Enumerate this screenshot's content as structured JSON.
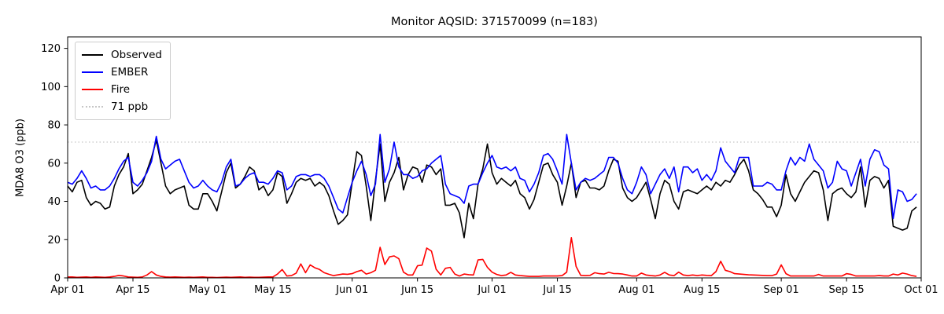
{
  "header": {
    "title": "Monitor AQSID: 371570099 (n=183)"
  },
  "chart_data": {
    "type": "line",
    "title": "Monitor AQSID: 371570099 (n=183)",
    "xlabel": "",
    "ylabel": "MDA8 O3 (ppb)",
    "ylim": [
      0,
      126
    ],
    "n_days": 183,
    "x_range": [
      "Apr 01",
      "Oct 01"
    ],
    "grid": false,
    "legend_position": "upper-left",
    "x_ticks": [
      {
        "label": "Apr 01",
        "day": 0
      },
      {
        "label": "Apr 15",
        "day": 14
      },
      {
        "label": "May 01",
        "day": 30
      },
      {
        "label": "May 15",
        "day": 44
      },
      {
        "label": "Jun 01",
        "day": 61
      },
      {
        "label": "Jun 15",
        "day": 75
      },
      {
        "label": "Jul 01",
        "day": 91
      },
      {
        "label": "Jul 15",
        "day": 105
      },
      {
        "label": "Aug 01",
        "day": 122
      },
      {
        "label": "Aug 15",
        "day": 136
      },
      {
        "label": "Sep 01",
        "day": 153
      },
      {
        "label": "Sep 15",
        "day": 167
      },
      {
        "label": "Oct 01",
        "day": 183
      }
    ],
    "y_ticks": [
      0,
      20,
      40,
      60,
      80,
      100,
      120
    ],
    "threshold": {
      "label": "71 ppb",
      "value": 71,
      "color": "#c6c6c6"
    },
    "series": [
      {
        "name": "Observed",
        "color": "#000000",
        "values": [
          48,
          45,
          50,
          51,
          42,
          38,
          40,
          39,
          36,
          37,
          48,
          54,
          58,
          65,
          44,
          46,
          49,
          56,
          63,
          72,
          60,
          48,
          44,
          46,
          47,
          48,
          38,
          36,
          36,
          44,
          44,
          40,
          35,
          45,
          55,
          60,
          47,
          49,
          53,
          58,
          56,
          46,
          48,
          43,
          46,
          55,
          53,
          39,
          44,
          50,
          52,
          51,
          52,
          48,
          50,
          48,
          43,
          35,
          28,
          30,
          33,
          50,
          66,
          64,
          48,
          30,
          51,
          70,
          40,
          50,
          55,
          63,
          46,
          54,
          58,
          57,
          50,
          59,
          58,
          54,
          57,
          38,
          38,
          39,
          34,
          21,
          39,
          31,
          49,
          57,
          70,
          55,
          49,
          52,
          50,
          48,
          51,
          44,
          42,
          36,
          41,
          50,
          59,
          60,
          54,
          50,
          38,
          48,
          60,
          42,
          50,
          51,
          47,
          47,
          46,
          48,
          56,
          62,
          61,
          47,
          42,
          40,
          42,
          46,
          50,
          41,
          31,
          44,
          51,
          49,
          40,
          36,
          45,
          46,
          45,
          44,
          46,
          48,
          46,
          50,
          48,
          51,
          50,
          54,
          59,
          62,
          56,
          46,
          44,
          41,
          37,
          37,
          32,
          38,
          54,
          44,
          40,
          45,
          50,
          53,
          56,
          55,
          46,
          30,
          44,
          46,
          47,
          44,
          42,
          45,
          58,
          37,
          51,
          53,
          52,
          47,
          51,
          27,
          26,
          25,
          26,
          35,
          37
        ]
      },
      {
        "name": "EMBER",
        "color": "#0000ff",
        "values": [
          50,
          49,
          52,
          56,
          52,
          47,
          48,
          46,
          46,
          48,
          52,
          57,
          61,
          63,
          50,
          48,
          51,
          55,
          61,
          74,
          62,
          57,
          59,
          61,
          62,
          56,
          50,
          47,
          48,
          51,
          48,
          46,
          45,
          50,
          58,
          62,
          48,
          49,
          52,
          54,
          55,
          50,
          50,
          49,
          52,
          56,
          55,
          46,
          48,
          53,
          54,
          54,
          53,
          54,
          54,
          52,
          48,
          42,
          36,
          34,
          42,
          50,
          56,
          61,
          54,
          43,
          49,
          75,
          50,
          57,
          71,
          58,
          54,
          54,
          52,
          53,
          56,
          57,
          60,
          62,
          64,
          49,
          44,
          43,
          42,
          39,
          48,
          49,
          49,
          55,
          60,
          64,
          58,
          57,
          58,
          56,
          58,
          52,
          51,
          45,
          49,
          55,
          64,
          65,
          62,
          56,
          49,
          75,
          60,
          46,
          50,
          52,
          51,
          52,
          54,
          56,
          63,
          63,
          60,
          52,
          46,
          44,
          50,
          58,
          54,
          44,
          49,
          54,
          57,
          52,
          58,
          45,
          58,
          58,
          55,
          57,
          51,
          54,
          51,
          56,
          68,
          61,
          58,
          55,
          63,
          63,
          63,
          48,
          48,
          48,
          50,
          49,
          46,
          46,
          56,
          63,
          59,
          63,
          61,
          70,
          62,
          59,
          56,
          47,
          50,
          61,
          57,
          56,
          48,
          55,
          62,
          48,
          62,
          67,
          66,
          59,
          57,
          31,
          46,
          45,
          40,
          41,
          44
        ]
      },
      {
        "name": "Fire",
        "color": "#ff0000",
        "values": [
          0.5,
          0.5,
          0.3,
          0.4,
          0.5,
          0.3,
          0.5,
          0.4,
          0.3,
          0.5,
          0.8,
          1.3,
          1.0,
          0.5,
          0.4,
          0.3,
          0.5,
          1.5,
          3.3,
          1.5,
          0.8,
          0.5,
          0.4,
          0.5,
          0.4,
          0.3,
          0.4,
          0.3,
          0.4,
          0.5,
          0.3,
          0.3,
          0.2,
          0.3,
          0.4,
          0.3,
          0.4,
          0.5,
          0.3,
          0.4,
          0.3,
          0.3,
          0.4,
          0.5,
          0.5,
          2.0,
          4.4,
          1.0,
          1.2,
          2.5,
          7.3,
          2.7,
          6.8,
          5.3,
          4.4,
          2.7,
          1.9,
          1.2,
          1.6,
          2.0,
          1.9,
          2.2,
          3.3,
          4.0,
          2.0,
          2.7,
          4.0,
          16.0,
          7.0,
          11.0,
          11.5,
          10.0,
          3.0,
          1.5,
          1.5,
          6.3,
          6.7,
          15.6,
          14.0,
          4.5,
          1.5,
          5.0,
          5.5,
          2.0,
          1.0,
          2.0,
          1.7,
          1.5,
          9.4,
          9.7,
          5.5,
          3.0,
          1.8,
          1.2,
          1.5,
          2.9,
          1.5,
          1.2,
          1.0,
          0.8,
          0.8,
          0.8,
          1.0,
          1.0,
          1.0,
          1.0,
          1.2,
          3.0,
          21.0,
          6.0,
          1.3,
          1.2,
          1.3,
          2.7,
          2.2,
          2.0,
          2.9,
          2.3,
          2.2,
          2.0,
          1.5,
          1.0,
          1.0,
          2.5,
          1.5,
          1.2,
          1.0,
          1.5,
          2.9,
          1.5,
          1.2,
          3.0,
          1.5,
          1.2,
          1.5,
          1.2,
          1.5,
          1.3,
          1.2,
          3.3,
          8.7,
          4.0,
          3.3,
          2.2,
          2.0,
          1.8,
          1.6,
          1.5,
          1.4,
          1.3,
          1.2,
          1.2,
          2.0,
          6.8,
          2.2,
          1.0,
          1.0,
          1.0,
          1.0,
          1.0,
          1.0,
          1.8,
          1.0,
          1.0,
          1.0,
          1.0,
          1.0,
          2.2,
          1.8,
          1.0,
          1.0,
          1.0,
          1.0,
          1.0,
          1.2,
          1.0,
          1.0,
          2.0,
          1.5,
          2.5,
          2.0,
          1.2,
          0.8
        ]
      }
    ]
  }
}
